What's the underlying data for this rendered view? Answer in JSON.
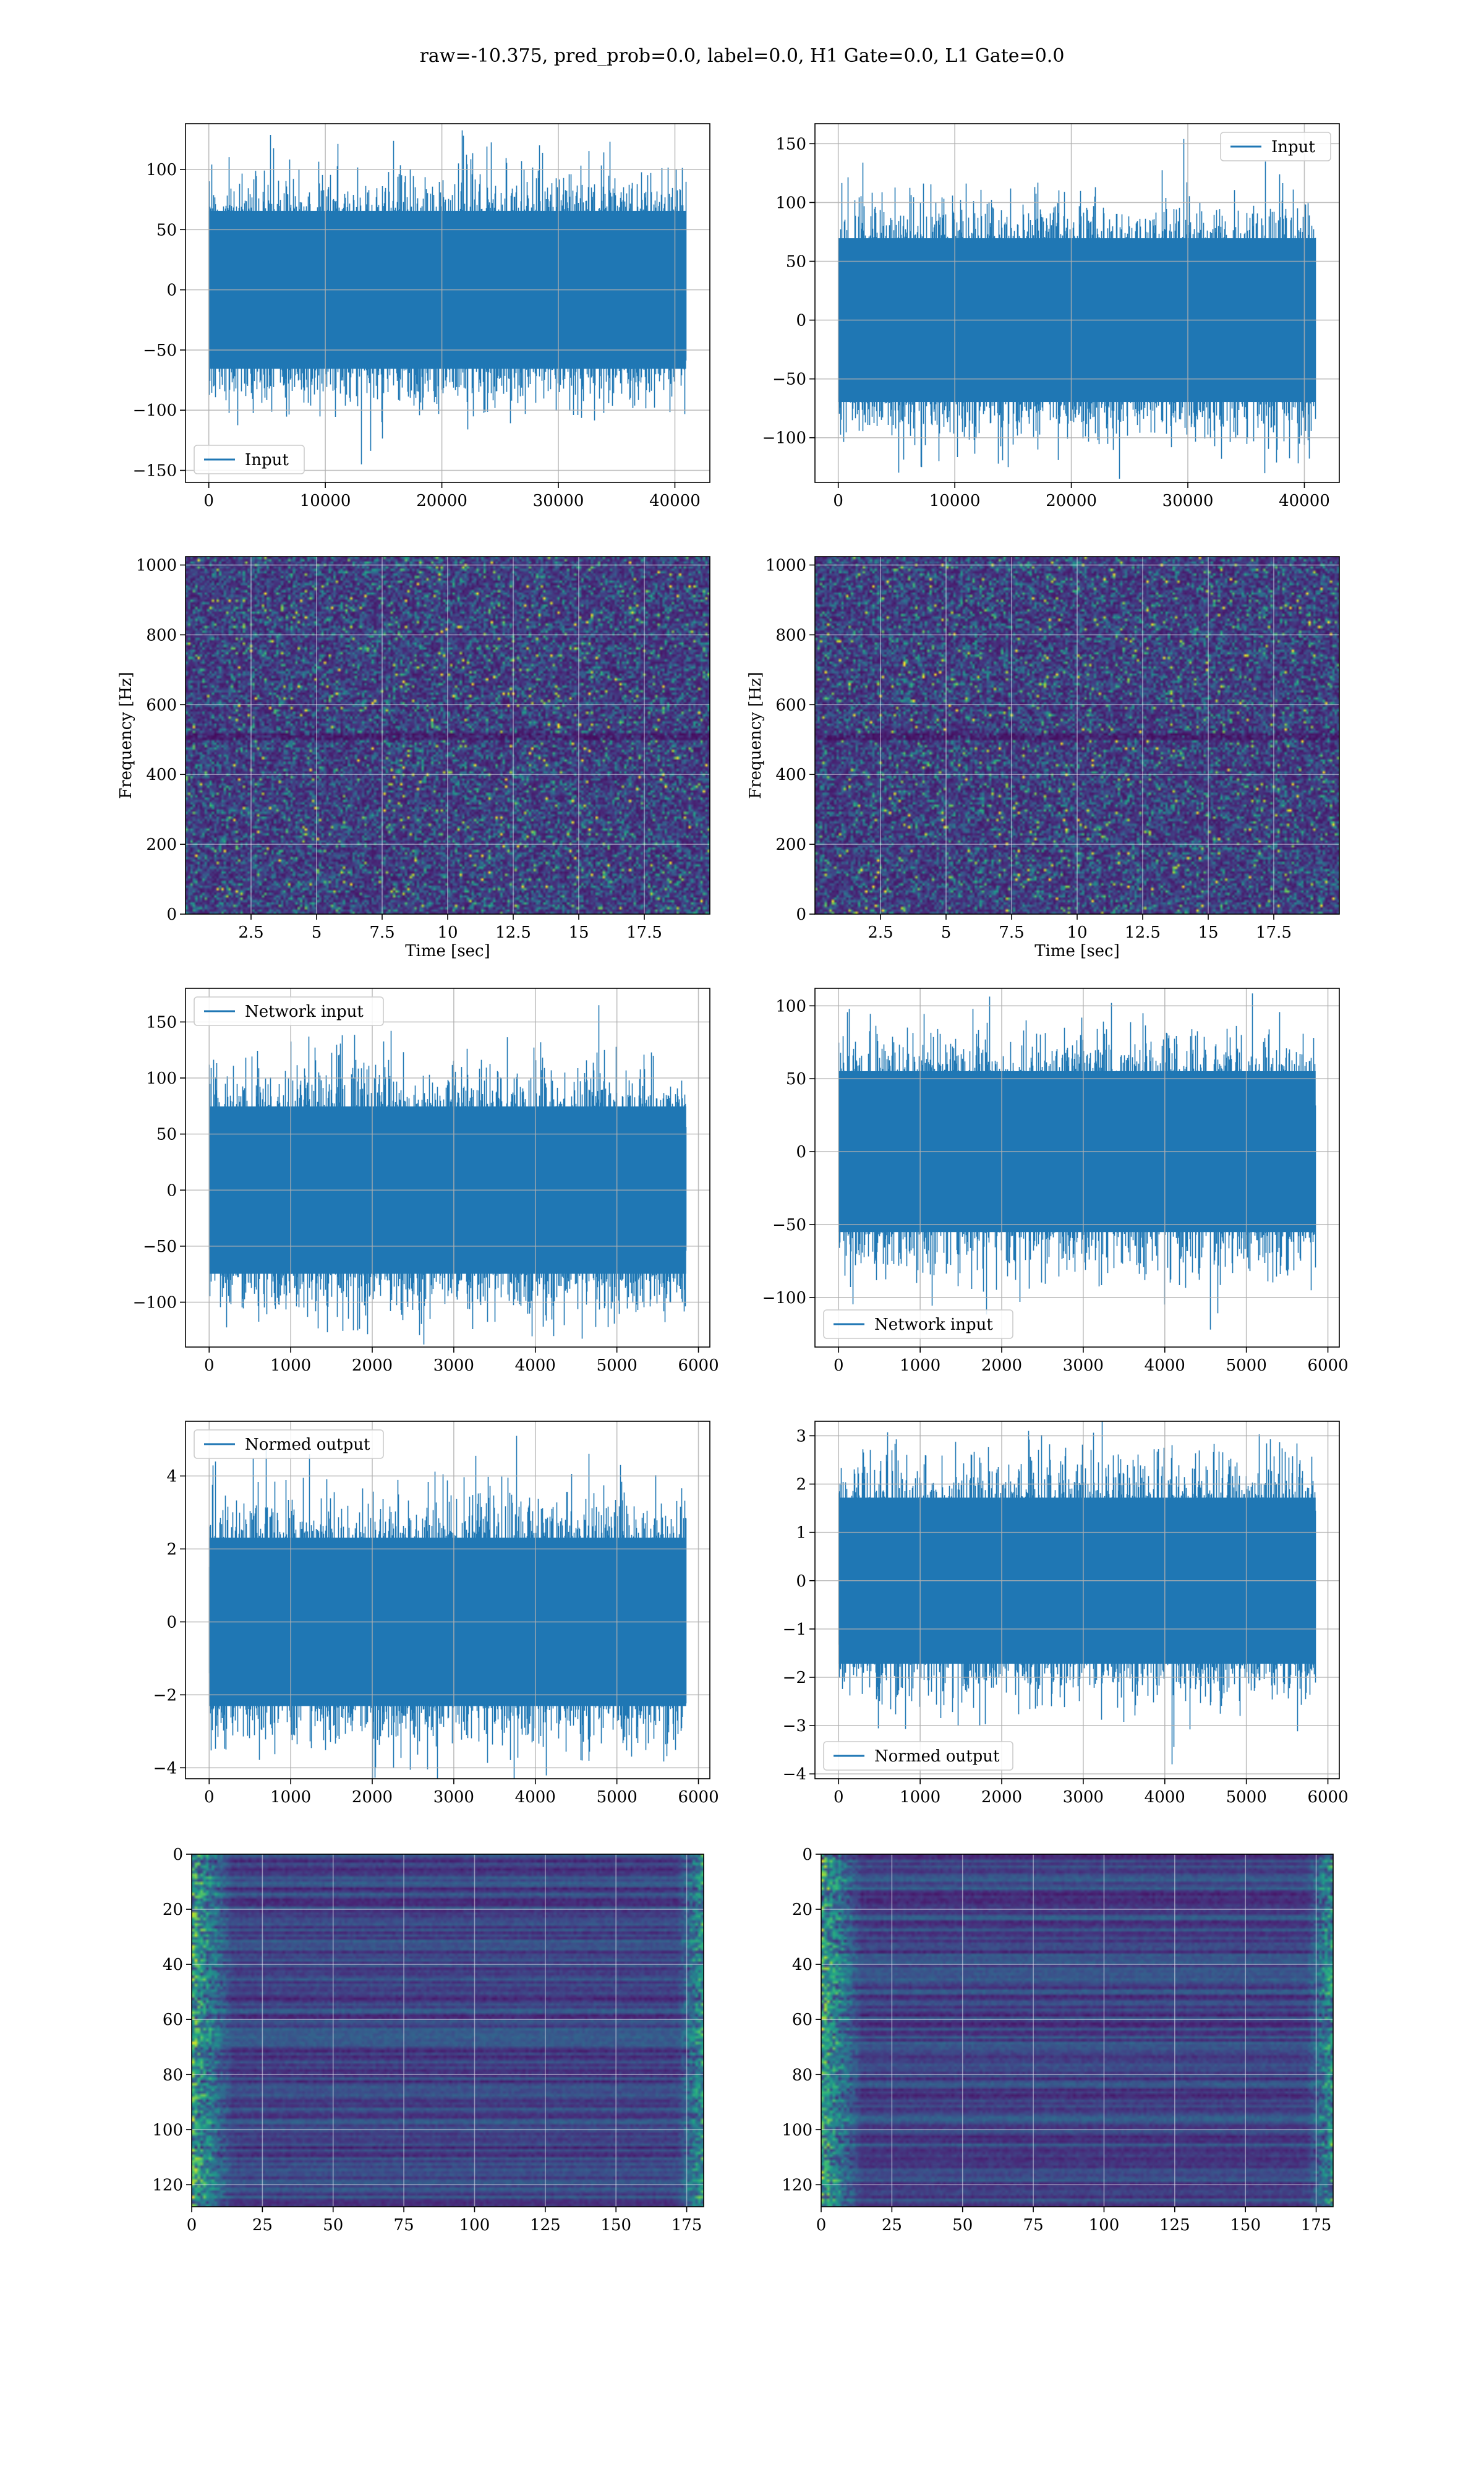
{
  "figure": {
    "suptitle": "raw=-10.375, pred_prob=0.0, label=0.0, H1 Gate=0.0, L1 Gate=0.0",
    "signal_color": "#1f77b4",
    "grid_color": "#b0b0b0",
    "colormap": "viridis"
  },
  "chart_data": [
    {
      "type": "line",
      "row": 1,
      "col": 1,
      "series": [
        {
          "name": "Input",
          "n_points": 40960,
          "amplitude_range": [
            -145,
            128
          ]
        }
      ],
      "xlim": [
        -2000,
        43000
      ],
      "ylim": [
        -160,
        138
      ],
      "xticks": [
        0,
        10000,
        20000,
        30000,
        40000
      ],
      "yticks": [
        -150,
        -100,
        -50,
        0,
        50,
        100
      ],
      "xlabel": "",
      "ylabel": "",
      "legend": "lower-left",
      "grid": true
    },
    {
      "type": "line",
      "row": 1,
      "col": 2,
      "series": [
        {
          "name": "Input",
          "n_points": 40960,
          "amplitude_range": [
            -122,
            154
          ]
        }
      ],
      "xlim": [
        -2000,
        43000
      ],
      "ylim": [
        -138,
        167
      ],
      "xticks": [
        0,
        10000,
        20000,
        30000,
        40000
      ],
      "yticks": [
        -100,
        -50,
        0,
        50,
        100,
        150
      ],
      "xlabel": "",
      "ylabel": "",
      "legend": "upper-right",
      "grid": true
    },
    {
      "type": "heatmap",
      "row": 2,
      "col": 1,
      "x_range": [
        0,
        20
      ],
      "y_range": [
        0,
        1024
      ],
      "xticks": [
        2.5,
        5.0,
        7.5,
        10.0,
        12.5,
        15.0,
        17.5
      ],
      "yticks": [
        0,
        200,
        400,
        600,
        800,
        1000
      ],
      "xlabel": "Time [sec]",
      "ylabel": "Frequency [Hz]",
      "grid": true
    },
    {
      "type": "heatmap",
      "row": 2,
      "col": 2,
      "x_range": [
        0,
        20
      ],
      "y_range": [
        0,
        1024
      ],
      "xticks": [
        2.5,
        5.0,
        7.5,
        10.0,
        12.5,
        15.0,
        17.5
      ],
      "yticks": [
        0,
        200,
        400,
        600,
        800,
        1000
      ],
      "xlabel": "Time [sec]",
      "ylabel": "Frequency [Hz]",
      "grid": true
    },
    {
      "type": "line",
      "row": 3,
      "col": 1,
      "series": [
        {
          "name": "Network input",
          "n_points": 5850,
          "amplitude_range": [
            -124,
            165
          ]
        }
      ],
      "xlim": [
        -290,
        6140
      ],
      "ylim": [
        -140,
        180
      ],
      "xticks": [
        0,
        1000,
        2000,
        3000,
        4000,
        5000,
        6000
      ],
      "yticks": [
        -100,
        -50,
        0,
        50,
        100,
        150
      ],
      "xlabel": "",
      "ylabel": "",
      "legend": "upper-left",
      "grid": true
    },
    {
      "type": "line",
      "row": 3,
      "col": 2,
      "series": [
        {
          "name": "Network input",
          "n_points": 5850,
          "amplitude_range": [
            -122,
            102
          ]
        }
      ],
      "xlim": [
        -290,
        6140
      ],
      "ylim": [
        -134,
        112
      ],
      "xticks": [
        0,
        1000,
        2000,
        3000,
        4000,
        5000,
        6000
      ],
      "yticks": [
        -100,
        -50,
        0,
        50,
        100
      ],
      "xlabel": "",
      "ylabel": "",
      "legend": "lower-left",
      "grid": true
    },
    {
      "type": "line",
      "row": 4,
      "col": 1,
      "series": [
        {
          "name": "Normed output",
          "n_points": 5850,
          "amplitude_range": [
            -3.8,
            5.1
          ]
        }
      ],
      "xlim": [
        -290,
        6140
      ],
      "ylim": [
        -4.3,
        5.5
      ],
      "xticks": [
        0,
        1000,
        2000,
        3000,
        4000,
        5000,
        6000
      ],
      "yticks": [
        -4,
        -2,
        0,
        2,
        4
      ],
      "xlabel": "",
      "ylabel": "",
      "legend": "upper-left",
      "grid": true
    },
    {
      "type": "line",
      "row": 4,
      "col": 2,
      "series": [
        {
          "name": "Normed output",
          "n_points": 5850,
          "amplitude_range": [
            -3.8,
            3.1
          ]
        }
      ],
      "xlim": [
        -290,
        6140
      ],
      "ylim": [
        -4.1,
        3.3
      ],
      "xticks": [
        0,
        1000,
        2000,
        3000,
        4000,
        5000,
        6000
      ],
      "yticks": [
        -4,
        -3,
        -2,
        -1,
        0,
        1,
        2,
        3
      ],
      "xlabel": "",
      "ylabel": "",
      "legend": "lower-left",
      "grid": true
    },
    {
      "type": "heatmap",
      "row": 5,
      "col": 1,
      "x_range": [
        0,
        181
      ],
      "y_range": [
        0,
        128
      ],
      "y_inverted": true,
      "xticks": [
        0,
        25,
        50,
        75,
        100,
        125,
        150,
        175
      ],
      "yticks": [
        0,
        20,
        40,
        60,
        80,
        100,
        120
      ],
      "xlabel": "",
      "ylabel": "",
      "grid": true
    },
    {
      "type": "heatmap",
      "row": 5,
      "col": 2,
      "x_range": [
        0,
        181
      ],
      "y_range": [
        0,
        128
      ],
      "y_inverted": true,
      "xticks": [
        0,
        25,
        50,
        75,
        100,
        125,
        150,
        175
      ],
      "yticks": [
        0,
        20,
        40,
        60,
        80,
        100,
        120
      ],
      "xlabel": "",
      "ylabel": "",
      "grid": true
    }
  ]
}
